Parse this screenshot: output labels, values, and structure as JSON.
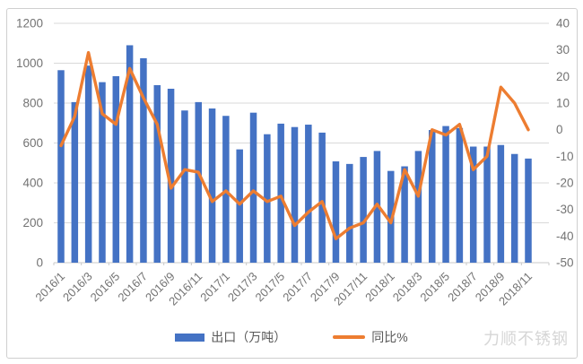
{
  "chart_data": {
    "type": "combo",
    "categories": [
      "2016/1",
      "2016/2",
      "2016/3",
      "2016/4",
      "2016/5",
      "2016/6",
      "2016/7",
      "2016/8",
      "2016/9",
      "2016/10",
      "2016/11",
      "2016/12",
      "2017/1",
      "2017/2",
      "2017/3",
      "2017/4",
      "2017/5",
      "2017/6",
      "2017/7",
      "2017/8",
      "2017/9",
      "2017/10",
      "2017/11",
      "2017/12",
      "2018/1",
      "2018/2",
      "2018/3",
      "2018/4",
      "2018/5",
      "2018/6",
      "2018/7",
      "2018/8",
      "2018/9",
      "2018/10",
      "2018/11"
    ],
    "series": [
      {
        "name": "出口（万吨）",
        "type": "bar",
        "axis": "left",
        "color": "#4472C4",
        "values": [
          965,
          805,
          988,
          905,
          935,
          1090,
          1025,
          890,
          872,
          763,
          805,
          773,
          736,
          568,
          752,
          644,
          697,
          680,
          692,
          652,
          508,
          495,
          530,
          560,
          460,
          483,
          560,
          665,
          685,
          675,
          582,
          582,
          590,
          545,
          522
        ]
      },
      {
        "name": "同比%",
        "type": "line",
        "axis": "right",
        "color": "#ED7D31",
        "values": [
          -6,
          5,
          29,
          6,
          2,
          23,
          12,
          2,
          -22,
          -15,
          -16,
          -27,
          -23,
          -28,
          -23,
          -27,
          -25,
          -36,
          -31,
          -27,
          -41,
          -37,
          -35,
          -28,
          -35,
          -15,
          -25,
          0,
          -2,
          2,
          -15,
          -10,
          16,
          10,
          0
        ]
      }
    ],
    "title": "",
    "xlabel": "",
    "ylabel_left": "",
    "ylabel_right": "",
    "y_left": {
      "min": 0,
      "max": 1200,
      "ticks": [
        0,
        200,
        400,
        600,
        800,
        1000,
        1200
      ]
    },
    "y_right": {
      "min": -50,
      "max": 40,
      "ticks": [
        -50,
        -40,
        -30,
        -20,
        -10,
        0,
        10,
        20,
        30,
        40
      ]
    },
    "x_tick_labels": [
      "2016/1",
      "2016/3",
      "2016/5",
      "2016/7",
      "2016/9",
      "2016/11",
      "2017/1",
      "2017/3",
      "2017/5",
      "2017/7",
      "2017/9",
      "2017/11",
      "2018/1",
      "2018/3",
      "2018/5",
      "2018/7",
      "2018/9",
      "2018/11"
    ],
    "x_tick_every": 2,
    "grid": true,
    "legend_position": "bottom"
  },
  "legend": {
    "bar_label": "出口（万吨）",
    "line_label": "同比%"
  },
  "watermark": {
    "text": "力顺不锈钢"
  },
  "colors": {
    "bar": "#4472C4",
    "line": "#ED7D31",
    "gridline": "#D9D9D9",
    "axis_line": "#C9C9C9",
    "tick_text": "#737373",
    "frame": "#CFCFCF",
    "watermark": "#D6D6D6",
    "background": "#FFFFFF"
  }
}
